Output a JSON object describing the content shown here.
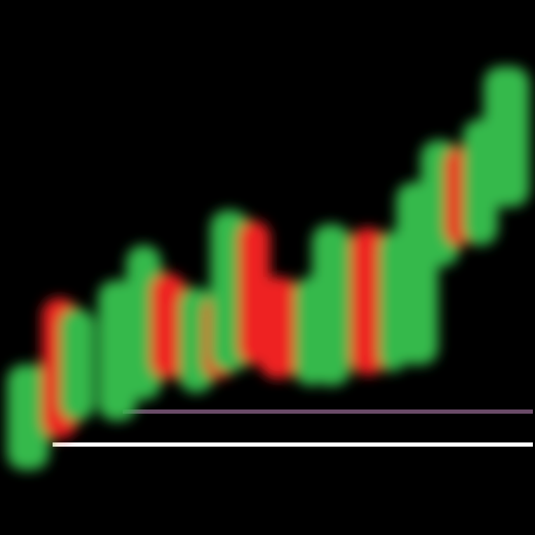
{
  "colors": {
    "background": "#000000",
    "bullish": "#34b94b",
    "bearish": "#ee2323",
    "upper_line": "#6a4b68",
    "lower_line": "#ffffff"
  },
  "icon": "candlestick-trend-icon",
  "candles": [
    {
      "direction": "up"
    },
    {
      "direction": "down"
    },
    {
      "direction": "up"
    },
    {
      "direction": "up"
    },
    {
      "direction": "down"
    },
    {
      "direction": "up"
    },
    {
      "direction": "up"
    },
    {
      "direction": "down"
    },
    {
      "direction": "up"
    },
    {
      "direction": "down"
    },
    {
      "direction": "up"
    },
    {
      "direction": "down"
    },
    {
      "direction": "up"
    },
    {
      "direction": "up"
    },
    {
      "direction": "down"
    },
    {
      "direction": "up"
    },
    {
      "direction": "up"
    }
  ]
}
